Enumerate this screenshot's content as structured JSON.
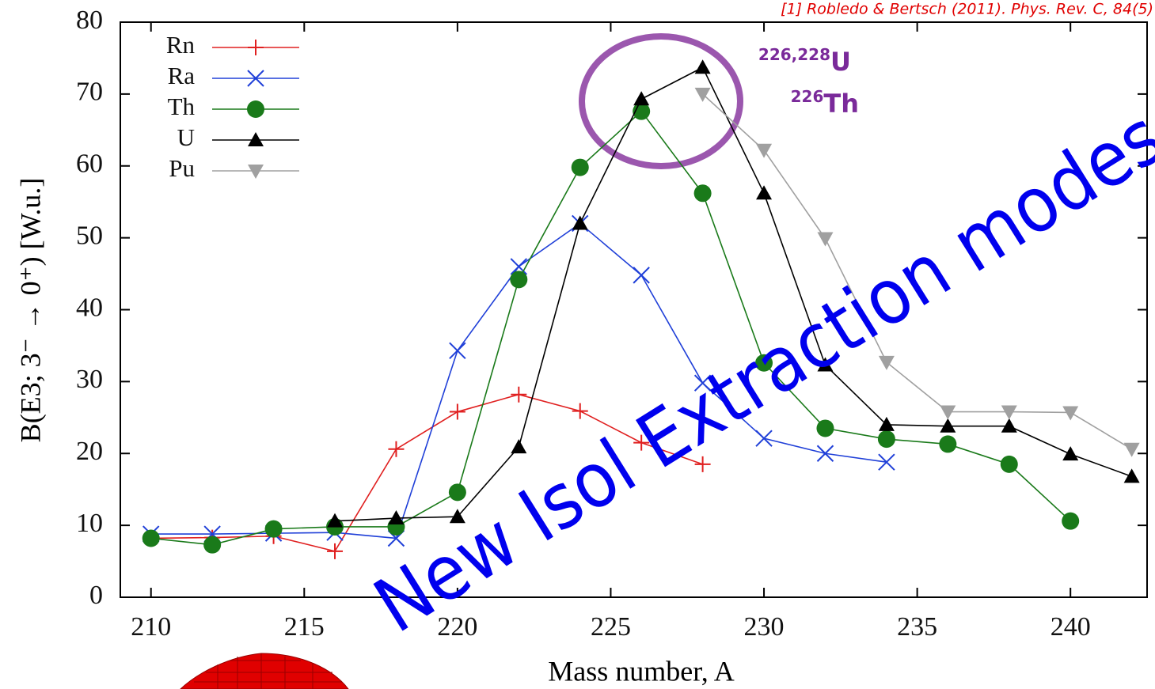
{
  "chart_data": {
    "type": "line",
    "citation": "[1] Robledo & Bertsch (2011). Phys. Rev. C, 84(5)",
    "x_label": "Mass number, A",
    "y_label": "B(E3; 3⁻ → 0⁺) [W.u.]",
    "x": [
      210,
      212,
      214,
      216,
      218,
      220,
      222,
      224,
      226,
      228,
      230,
      232,
      234,
      236,
      238,
      240,
      242
    ],
    "series": [
      {
        "name": "Rn",
        "color": "#e02020",
        "marker": "plus",
        "values": [
          8.2,
          8.3,
          8.5,
          6.4,
          20.6,
          25.8,
          28.2,
          25.9,
          21.5,
          18.5,
          null,
          null,
          null,
          null,
          null,
          null,
          null
        ]
      },
      {
        "name": "Ra",
        "color": "#2040d8",
        "marker": "cross",
        "values": [
          8.8,
          8.8,
          8.9,
          9.0,
          8.2,
          34.3,
          46.0,
          52.0,
          44.8,
          29.8,
          22.1,
          20.0,
          18.8,
          null,
          null,
          null,
          null
        ]
      },
      {
        "name": "Th",
        "color": "#1a7a1a",
        "marker": "circle",
        "values": [
          8.2,
          7.3,
          9.5,
          9.8,
          9.8,
          14.6,
          44.2,
          59.8,
          67.6,
          56.2,
          32.6,
          23.5,
          22.0,
          21.3,
          18.5,
          10.6,
          null
        ]
      },
      {
        "name": "U",
        "color": "#000000",
        "marker": "triangle-up",
        "values": [
          null,
          null,
          null,
          10.6,
          11.0,
          11.2,
          20.9,
          52.0,
          69.3,
          73.7,
          56.2,
          32.3,
          24.0,
          23.8,
          23.8,
          19.9,
          16.8
        ]
      },
      {
        "name": "Pu",
        "color": "#a0a0a0",
        "marker": "triangle-down",
        "values": [
          null,
          null,
          null,
          null,
          null,
          null,
          null,
          null,
          null,
          70.0,
          62.2,
          49.9,
          32.7,
          25.8,
          25.8,
          25.7,
          20.6
        ]
      }
    ],
    "xlim": [
      209,
      242.5
    ],
    "ylim": [
      0,
      80
    ],
    "xticks": [
      210,
      215,
      220,
      225,
      230,
      235,
      240
    ],
    "yticks": [
      0,
      10,
      20,
      30,
      40,
      50,
      60,
      70,
      80
    ],
    "legend": "top-left",
    "annotations": [
      {
        "sup": "226,228",
        "text": "U"
      },
      {
        "sup": "226",
        "text": "Th"
      }
    ],
    "watermark": "New Isol Extraction modes"
  }
}
